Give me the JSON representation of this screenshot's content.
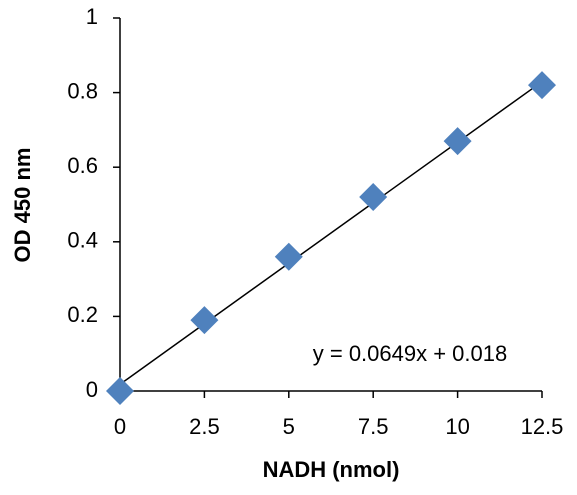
{
  "chart_data": {
    "type": "scatter",
    "x_label": "NADH (nmol)",
    "y_label": "OD 450 nm",
    "series": [
      {
        "color": "#4f81bd",
        "x": [
          0,
          2.5,
          5,
          7.5,
          10,
          12.5
        ],
        "values": [
          0,
          0.19,
          0.36,
          0.52,
          0.67,
          0.82
        ]
      }
    ],
    "trendline": {
      "slope": 0.0649,
      "intercept": 0.018,
      "label": "y = 0.0649x + 0.018",
      "color": "#000000"
    },
    "xlim": [
      0,
      12.5
    ],
    "xticks": [
      0,
      2.5,
      5,
      7.5,
      10,
      12.5
    ],
    "ylim": [
      0,
      1
    ],
    "yticks": [
      0,
      0.2,
      0.4,
      0.6,
      0.8,
      1
    ],
    "grid": false
  }
}
